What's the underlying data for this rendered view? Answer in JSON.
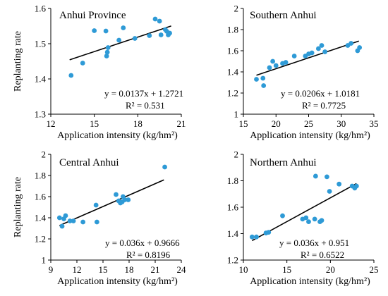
{
  "chart_data": [
    {
      "type": "scatter",
      "title": "Anhui Province",
      "xlabel": "Application intensity  (kg/hm²)",
      "ylabel": "Replanting rate",
      "xlim": [
        12,
        21
      ],
      "ylim": [
        1.3,
        1.6
      ],
      "xticks": [
        "12",
        "15",
        "18",
        "21"
      ],
      "yticks": [
        "1.3",
        "1.4",
        "1.5",
        "1.6"
      ],
      "equation": "y = 0.0137x + 1.2721",
      "r2": "R² = 0.531",
      "trend": {
        "slope": 0.0137,
        "intercept": 1.2721,
        "x_range": [
          13.3,
          20.3
        ]
      },
      "points": [
        {
          "x": 13.4,
          "y": 1.41
        },
        {
          "x": 14.2,
          "y": 1.445
        },
        {
          "x": 15.0,
          "y": 1.537
        },
        {
          "x": 15.8,
          "y": 1.536
        },
        {
          "x": 15.85,
          "y": 1.465
        },
        {
          "x": 15.9,
          "y": 1.476
        },
        {
          "x": 15.95,
          "y": 1.489
        },
        {
          "x": 16.7,
          "y": 1.51
        },
        {
          "x": 17.0,
          "y": 1.545
        },
        {
          "x": 17.8,
          "y": 1.515
        },
        {
          "x": 18.8,
          "y": 1.523
        },
        {
          "x": 19.2,
          "y": 1.57
        },
        {
          "x": 19.5,
          "y": 1.564
        },
        {
          "x": 19.6,
          "y": 1.525
        },
        {
          "x": 19.9,
          "y": 1.54
        },
        {
          "x": 20.0,
          "y": 1.535
        },
        {
          "x": 20.1,
          "y": 1.525
        },
        {
          "x": 20.2,
          "y": 1.53
        }
      ]
    },
    {
      "type": "scatter",
      "title": "Southern Anhui",
      "xlabel": "Application intensity  (kg/hm²)",
      "ylabel": "",
      "xlim": [
        15,
        35
      ],
      "ylim": [
        1,
        2
      ],
      "xticks": [
        "15",
        "20",
        "25",
        "30",
        "35"
      ],
      "yticks": [
        "1",
        "1.2",
        "1.4",
        "1.6",
        "1.8",
        "2"
      ],
      "equation": "y = 0.0206x + 1.0181",
      "r2": "R² = 0.7725",
      "trend": {
        "slope": 0.0206,
        "intercept": 1.0181,
        "x_range": [
          17,
          32.7
        ]
      },
      "points": [
        {
          "x": 17.0,
          "y": 1.33
        },
        {
          "x": 18.0,
          "y": 1.34
        },
        {
          "x": 18.1,
          "y": 1.27
        },
        {
          "x": 19.0,
          "y": 1.44
        },
        {
          "x": 19.5,
          "y": 1.5
        },
        {
          "x": 20.0,
          "y": 1.46
        },
        {
          "x": 21.0,
          "y": 1.48
        },
        {
          "x": 21.5,
          "y": 1.49
        },
        {
          "x": 22.8,
          "y": 1.55
        },
        {
          "x": 24.5,
          "y": 1.55
        },
        {
          "x": 25.0,
          "y": 1.57
        },
        {
          "x": 25.5,
          "y": 1.58
        },
        {
          "x": 26.5,
          "y": 1.62
        },
        {
          "x": 27.0,
          "y": 1.65
        },
        {
          "x": 27.5,
          "y": 1.59
        },
        {
          "x": 31.0,
          "y": 1.65
        },
        {
          "x": 31.5,
          "y": 1.67
        },
        {
          "x": 32.5,
          "y": 1.6
        },
        {
          "x": 32.8,
          "y": 1.63
        }
      ]
    },
    {
      "type": "scatter",
      "title": "Central Anhui",
      "xlabel": "Application intensity  (kg/hm²)",
      "ylabel": "Replanting rate",
      "xlim": [
        9,
        24
      ],
      "ylim": [
        1,
        2
      ],
      "xticks": [
        "9",
        "12",
        "15",
        "18",
        "21",
        "24"
      ],
      "yticks": [
        "1",
        "1.2",
        "1.4",
        "1.6",
        "1.8",
        "2"
      ],
      "equation": "y = 0.036x + 0.9666",
      "r2": "R² = 0.8196",
      "trend": {
        "slope": 0.036,
        "intercept": 0.9666,
        "x_range": [
          10,
          22
        ]
      },
      "points": [
        {
          "x": 10.0,
          "y": 1.4
        },
        {
          "x": 10.3,
          "y": 1.32
        },
        {
          "x": 10.5,
          "y": 1.39
        },
        {
          "x": 10.7,
          "y": 1.42
        },
        {
          "x": 11.2,
          "y": 1.37
        },
        {
          "x": 11.6,
          "y": 1.37
        },
        {
          "x": 12.7,
          "y": 1.36
        },
        {
          "x": 14.2,
          "y": 1.52
        },
        {
          "x": 14.3,
          "y": 1.36
        },
        {
          "x": 16.5,
          "y": 1.62
        },
        {
          "x": 16.8,
          "y": 1.56
        },
        {
          "x": 17.0,
          "y": 1.54
        },
        {
          "x": 17.2,
          "y": 1.55
        },
        {
          "x": 17.3,
          "y": 1.6
        },
        {
          "x": 17.5,
          "y": 1.57
        },
        {
          "x": 17.9,
          "y": 1.57
        },
        {
          "x": 22.1,
          "y": 1.88
        }
      ]
    },
    {
      "type": "scatter",
      "title": "Northern Anhui",
      "xlabel": "Application intensity  (kg/hm²)",
      "ylabel": "",
      "xlim": [
        10,
        25
      ],
      "ylim": [
        1.2,
        2
      ],
      "xticks": [
        "10",
        "15",
        "20",
        "25"
      ],
      "yticks": [
        "1.2",
        "1.4",
        "1.6",
        "1.8",
        "2"
      ],
      "equation": "y = 0.036x + 0.951",
      "r2": "R² = 0.6522",
      "trend": {
        "slope": 0.036,
        "intercept": 0.951,
        "x_range": [
          11,
          23
        ]
      },
      "points": [
        {
          "x": 11.0,
          "y": 1.375
        },
        {
          "x": 11.5,
          "y": 1.375
        },
        {
          "x": 12.6,
          "y": 1.405
        },
        {
          "x": 12.9,
          "y": 1.41
        },
        {
          "x": 14.5,
          "y": 1.535
        },
        {
          "x": 16.8,
          "y": 1.51
        },
        {
          "x": 17.2,
          "y": 1.52
        },
        {
          "x": 17.5,
          "y": 1.49
        },
        {
          "x": 18.2,
          "y": 1.51
        },
        {
          "x": 18.3,
          "y": 1.835
        },
        {
          "x": 18.8,
          "y": 1.49
        },
        {
          "x": 19.0,
          "y": 1.5
        },
        {
          "x": 19.6,
          "y": 1.83
        },
        {
          "x": 19.9,
          "y": 1.72
        },
        {
          "x": 21.0,
          "y": 1.775
        },
        {
          "x": 22.5,
          "y": 1.76
        },
        {
          "x": 22.8,
          "y": 1.745
        },
        {
          "x": 23.0,
          "y": 1.76
        }
      ]
    }
  ]
}
